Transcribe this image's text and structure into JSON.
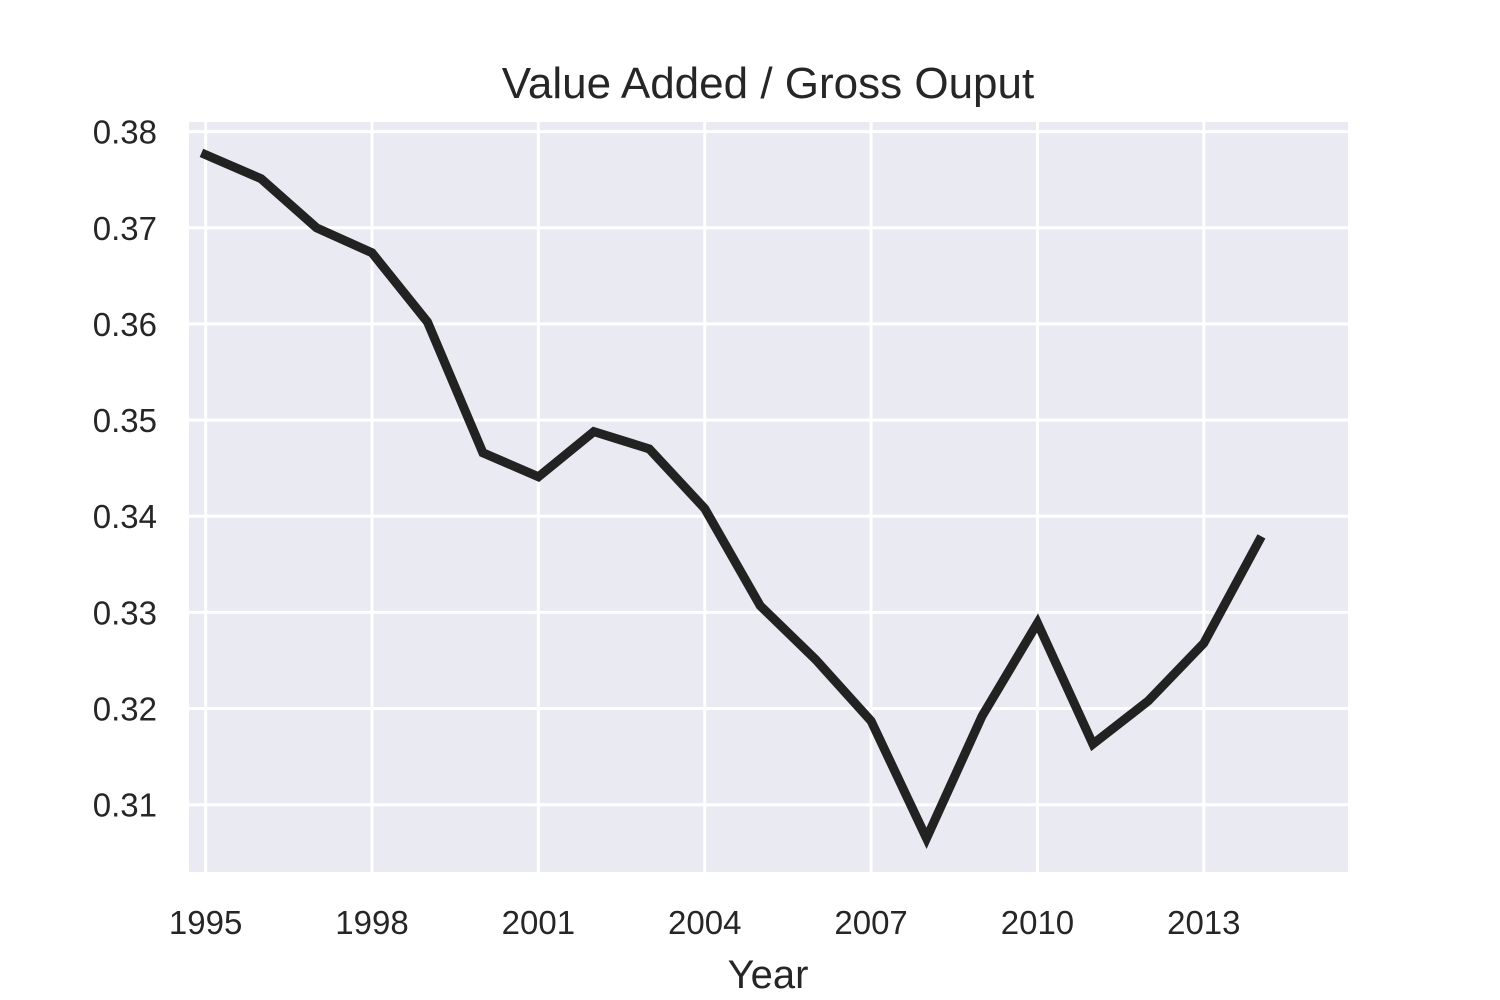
{
  "chart_data": {
    "type": "line",
    "title": "Value Added / Gross Ouput",
    "xlabel": "Year",
    "ylabel": "",
    "x": [
      1995,
      1996,
      1997,
      1998,
      1999,
      2000,
      2001,
      2002,
      2003,
      2004,
      2005,
      2006,
      2007,
      2008,
      2009,
      2010,
      2011,
      2012,
      2013,
      2014
    ],
    "series": [
      {
        "values": [
          0.3776,
          0.3751,
          0.37,
          0.3674,
          0.3602,
          0.3466,
          0.3441,
          0.3488,
          0.347,
          0.3408,
          0.3307,
          0.3251,
          0.3187,
          0.3065,
          0.3192,
          0.3289,
          0.3163,
          0.3208,
          0.3268,
          0.3375
        ],
        "color": "#222222"
      }
    ],
    "xticks": [
      "1995",
      "1998",
      "2001",
      "2004",
      "2007",
      "2010",
      "2013"
    ],
    "yticks": [
      "0.31",
      "0.32",
      "0.33",
      "0.34",
      "0.35",
      "0.36",
      "0.37",
      "0.38"
    ],
    "xlim": [
      1994.7,
      2015.6
    ],
    "ylim": [
      0.303,
      0.381
    ],
    "grid": true,
    "legend": "none",
    "colors": {
      "background": "#EAEAF2",
      "grid": "#FFFFFF",
      "line": "#222222",
      "text": "#262626"
    }
  }
}
